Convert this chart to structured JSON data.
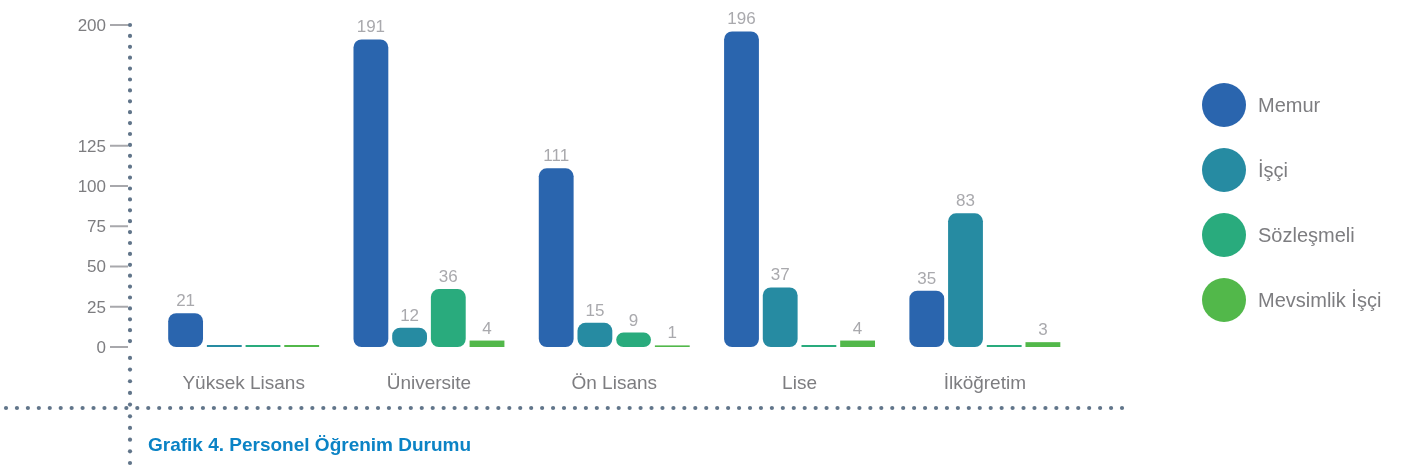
{
  "chart_data": {
    "type": "bar",
    "title": "Grafik 4. Personel Öğrenim Durumu",
    "categories": [
      "Yüksek Lisans",
      "Üniversite",
      "Ön Lisans",
      "Lise",
      "İlköğretim"
    ],
    "series": [
      {
        "name": "Memur",
        "color": "#2a65ae",
        "values": [
          21,
          191,
          111,
          196,
          35
        ],
        "value_labels": [
          "21",
          "191",
          "111",
          "196",
          "35"
        ]
      },
      {
        "name": "İşçi",
        "color": "#268ba2",
        "values": [
          0,
          12,
          15,
          37,
          83
        ],
        "value_labels": [
          null,
          "12",
          "15",
          "37",
          "83"
        ]
      },
      {
        "name": "Sözleşmeli",
        "color": "#29ab7d",
        "values": [
          0,
          36,
          9,
          0,
          0
        ],
        "value_labels": [
          null,
          "36",
          "9",
          null,
          null
        ]
      },
      {
        "name": "Mevsimlik İşçi",
        "color": "#52b84a",
        "values": [
          0,
          4,
          1,
          4,
          3
        ],
        "value_labels": [
          null,
          "4",
          "1",
          "4",
          "3"
        ]
      }
    ],
    "ylim": [
      0,
      200
    ],
    "yticks": [
      0,
      25,
      50,
      75,
      100,
      125,
      200
    ],
    "legend": "right"
  }
}
